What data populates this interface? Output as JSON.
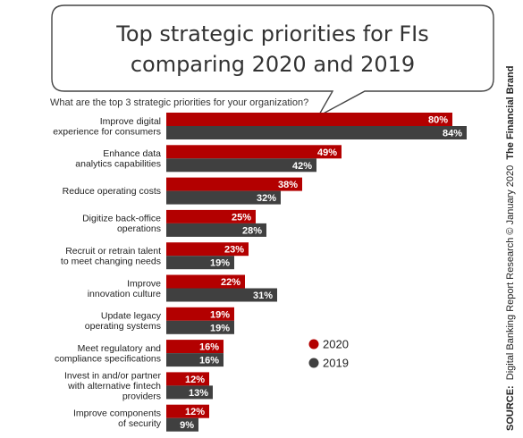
{
  "title_lines": [
    "Top strategic priorities for FIs",
    "comparing 2020 and 2019"
  ],
  "question": "What are the top 3 strategic priorities for your organization?",
  "source": {
    "prefix": "SOURCE:",
    "body": "Digital Banking Report Research © January 2020",
    "brand": "The Financial Brand"
  },
  "colors": {
    "2020": "#b30000",
    "2019": "#404040",
    "bubble_border": "#444444"
  },
  "chart_data": {
    "type": "bar",
    "orientation": "horizontal",
    "categories": [
      [
        "Improve digital",
        "experience for consumers"
      ],
      [
        "Enhance data",
        "analytics capabilities"
      ],
      [
        "Reduce operating costs"
      ],
      [
        "Digitize back-office",
        "operations"
      ],
      [
        "Recruit or retrain talent",
        "to meet changing needs"
      ],
      [
        "Improve",
        "innovation culture"
      ],
      [
        "Update legacy",
        "operating systems"
      ],
      [
        "Meet regulatory and",
        "compliance specifications"
      ],
      [
        "Invest in and/or partner",
        "with alternative fintech",
        "providers"
      ],
      [
        "Improve components",
        "of security"
      ]
    ],
    "series": [
      {
        "name": "2020",
        "values": [
          80,
          49,
          38,
          25,
          23,
          22,
          19,
          16,
          12,
          12
        ]
      },
      {
        "name": "2019",
        "values": [
          84,
          42,
          32,
          28,
          19,
          31,
          19,
          16,
          13,
          9
        ]
      }
    ],
    "value_suffix": "%",
    "xlim": [
      0,
      100
    ],
    "legend": "right"
  }
}
